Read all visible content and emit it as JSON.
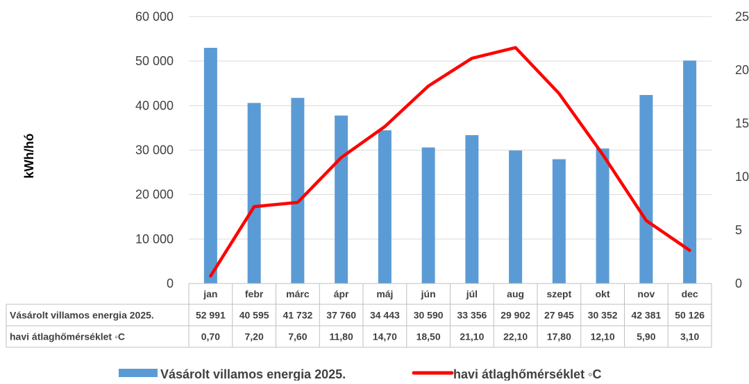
{
  "chart_data": {
    "type": "bar",
    "categories": [
      "jan",
      "febr",
      "márc",
      "ápr",
      "máj",
      "jún",
      "júl",
      "aug",
      "szept",
      "okt",
      "nov",
      "dec"
    ],
    "ylabel": "kWh/hó",
    "ylim": [
      0,
      60000
    ],
    "y_ticks": [
      "0",
      "10 000",
      "20 000",
      "30 000",
      "40 000",
      "50 000",
      "60 000"
    ],
    "y2lim": [
      0,
      25
    ],
    "y2_ticks": [
      "0",
      "5",
      "10",
      "15",
      "20",
      "25"
    ],
    "grid": true,
    "legend_position": "bottom",
    "series": [
      {
        "name": "Vásárolt villamos energia 2025.",
        "type": "bar",
        "axis": "left",
        "color": "#5B9BD5",
        "values": [
          52991,
          40595,
          41732,
          37760,
          34443,
          30590,
          33356,
          29902,
          27945,
          30352,
          42381,
          50126
        ],
        "table_values": [
          "52 991",
          "40 595",
          "41 732",
          "37 760",
          "34 443",
          "30 590",
          "33 356",
          "29 902",
          "27 945",
          "30 352",
          "42 381",
          "50 126"
        ]
      },
      {
        "name": "havi átlaghőmérséklet ◦C",
        "type": "line",
        "axis": "right",
        "color": "#FF0000",
        "values": [
          0.7,
          7.2,
          7.6,
          11.8,
          14.7,
          18.5,
          21.1,
          22.1,
          17.8,
          12.1,
          5.9,
          3.1
        ],
        "table_values": [
          "0,70",
          "7,20",
          "7,60",
          "11,80",
          "14,70",
          "18,50",
          "21,10",
          "22,10",
          "17,80",
          "12,10",
          "5,90",
          "3,10"
        ]
      }
    ]
  }
}
